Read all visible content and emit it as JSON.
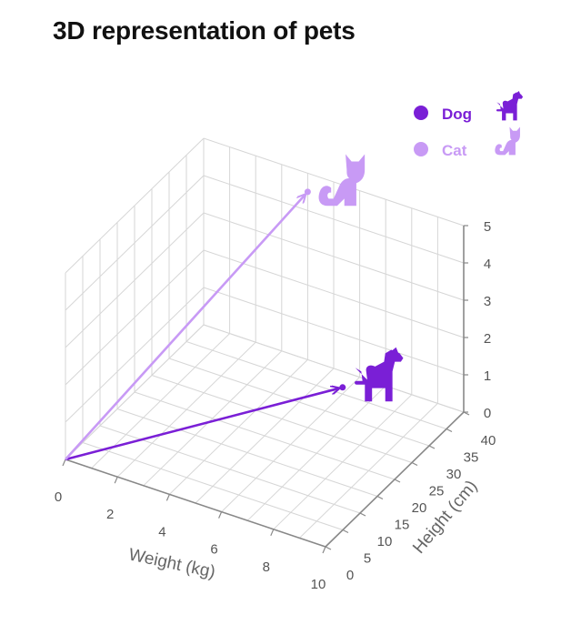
{
  "chart_data": {
    "type": "scatter",
    "title": "3D representation of pets",
    "xlabel": "Weight (kg)",
    "ylabel": "Height (cm)",
    "zlabel": "",
    "xlim": [
      0,
      10
    ],
    "ylim": [
      0,
      40
    ],
    "zlim": [
      0,
      5
    ],
    "x_ticks": [
      "0",
      "2",
      "4",
      "6",
      "8",
      "10"
    ],
    "y_ticks": [
      "0",
      "5",
      "10",
      "15",
      "20",
      "25",
      "30",
      "35",
      "40"
    ],
    "z_ticks": [
      "0",
      "1",
      "2",
      "3",
      "4",
      "5"
    ],
    "grid": true,
    "legend_position": "top-right",
    "series": [
      {
        "name": "Dog",
        "color": "#7a1fd6",
        "icon": "dog-icon",
        "x": 8,
        "y": 20,
        "z": 2
      },
      {
        "name": "Cat",
        "color": "#c89af5",
        "icon": "cat-icon",
        "x": 4,
        "y": 40,
        "z": 4.5
      }
    ]
  }
}
